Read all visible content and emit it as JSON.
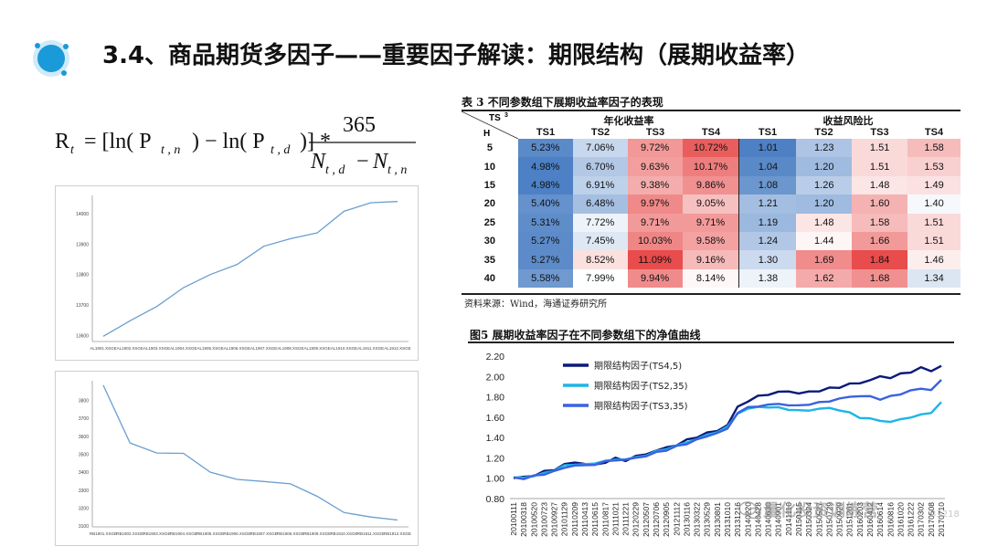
{
  "title": "3.4、商品期货多因子——重要因子解读：期限结构（展期收益率）",
  "formula": {
    "lhs": "R",
    "lhs_sub": "t",
    "body": "= [ln( P",
    "p1_sub": "t , n",
    "mid": ") − ln( P",
    "p2_sub": "t , d",
    "tail": ")] *",
    "numerator": "365",
    "den_n1": "N",
    "den_n1_sub": "t , d",
    "den_minus": "−",
    "den_n2": "N",
    "den_n2_sub": "t , n"
  },
  "chart_data": [
    {
      "type": "line",
      "series": [
        {
          "values": [
            13597,
            13648,
            13695,
            13757,
            13800,
            13833,
            13893,
            13918,
            13937,
            14008,
            14036,
            14040
          ]
        }
      ],
      "categories": [
        "AL1901.XSGE",
        "AL1902.XSGE",
        "AL1903.XSGE",
        "AL1904.XSGE",
        "AL1905.XSGE",
        "AL1906.XSGE",
        "AL1907.XSGE",
        "AL1908.XSGE",
        "AL1909.XSGE",
        "AL1910.XSGE",
        "AL1911.XSGE",
        "AL1912.XSGE"
      ],
      "yticks": [
        "13600",
        "13700",
        "13800",
        "13900",
        "14000"
      ],
      "ylim": [
        13580,
        14060
      ],
      "color": "#6a9ed0"
    },
    {
      "type": "line",
      "series": [
        {
          "values": [
            3885,
            3563,
            3507,
            3505,
            3400,
            3360,
            3348,
            3335,
            3265,
            3175,
            3150,
            3133
          ]
        }
      ],
      "categories": [
        "RB1901.XSGE",
        "RB1902.XSGE",
        "RB1903.XSGE",
        "RB1904.XSGE",
        "RB1905.XSGE",
        "RB1906.XSGE",
        "RB1907.XSGE",
        "RB1908.XSGE",
        "RB1909.XSGE",
        "RB1910.XSGE",
        "RB1911.XSGE",
        "RB1912.XSGE"
      ],
      "yticks": [
        "3100",
        "3200",
        "3300",
        "3400",
        "3500",
        "3600",
        "3700",
        "3800"
      ],
      "ylim": [
        3095,
        3910
      ],
      "color": "#6a9ed0"
    },
    {
      "type": "table",
      "title": "表 3  不同参数组下展期收益率因子的表现",
      "corner_top": "TS",
      "corner_sup": "3",
      "corner_bottom": "H",
      "group_headers": [
        "年化收益率",
        "收益风险比"
      ],
      "columns": [
        "TS1",
        "TS2",
        "TS3",
        "TS4",
        "TS1",
        "TS2",
        "TS3",
        "TS4"
      ],
      "rows": [
        {
          "h": "5",
          "ret": [
            "5.23%",
            "7.06%",
            "9.72%",
            "10.72%"
          ],
          "rr": [
            "1.01",
            "1.23",
            "1.51",
            "1.58"
          ]
        },
        {
          "h": "10",
          "ret": [
            "4.98%",
            "6.70%",
            "9.63%",
            "10.17%"
          ],
          "rr": [
            "1.04",
            "1.20",
            "1.51",
            "1.53"
          ]
        },
        {
          "h": "15",
          "ret": [
            "4.98%",
            "6.91%",
            "9.38%",
            "9.86%"
          ],
          "rr": [
            "1.08",
            "1.26",
            "1.48",
            "1.49"
          ]
        },
        {
          "h": "20",
          "ret": [
            "5.40%",
            "6.48%",
            "9.97%",
            "9.05%"
          ],
          "rr": [
            "1.21",
            "1.20",
            "1.60",
            "1.40"
          ]
        },
        {
          "h": "25",
          "ret": [
            "5.31%",
            "7.72%",
            "9.71%",
            "9.71%"
          ],
          "rr": [
            "1.19",
            "1.48",
            "1.58",
            "1.51"
          ]
        },
        {
          "h": "30",
          "ret": [
            "5.27%",
            "7.45%",
            "10.03%",
            "9.58%"
          ],
          "rr": [
            "1.24",
            "1.44",
            "1.66",
            "1.51"
          ]
        },
        {
          "h": "35",
          "ret": [
            "5.27%",
            "8.52%",
            "11.09%",
            "9.16%"
          ],
          "rr": [
            "1.30",
            "1.69",
            "1.84",
            "1.46"
          ]
        },
        {
          "h": "40",
          "ret": [
            "5.58%",
            "7.99%",
            "9.94%",
            "8.14%"
          ],
          "rr": [
            "1.38",
            "1.62",
            "1.68",
            "1.34"
          ]
        }
      ],
      "source": "资料来源：Wind，海通证券研究所"
    },
    {
      "type": "line",
      "title": "图5  展期收益率因子在不同参数组下的净值曲线",
      "ylim": [
        0.8,
        2.2
      ],
      "yticks": [
        "0.80",
        "1.00",
        "1.20",
        "1.40",
        "1.60",
        "1.80",
        "2.00",
        "2.20"
      ],
      "x": [
        "20100111",
        "20100318",
        "20100520",
        "20100723",
        "20100927",
        "20101129",
        "20110209",
        "20110413",
        "20110615",
        "20110817",
        "20111021",
        "20111221",
        "20120229",
        "20120507",
        "20120706",
        "20120905",
        "20121112",
        "20130116",
        "20130322",
        "20130529",
        "20130801",
        "20131010",
        "20131216",
        "20140220",
        "20140428",
        "20140630",
        "20140901",
        "20141110",
        "20150115",
        "20150324",
        "20150527",
        "20150729",
        "20150929",
        "20151201",
        "20160203",
        "20160412",
        "20160614",
        "20160816",
        "20161020",
        "20161222",
        "20170302",
        "20170508",
        "20170710"
      ],
      "series": [
        {
          "name": "期限结构因子(TS4,5)",
          "color": "#0a1a7a",
          "values": [
            1.0,
            1.01,
            1.03,
            1.06,
            1.09,
            1.13,
            1.16,
            1.14,
            1.13,
            1.16,
            1.19,
            1.18,
            1.21,
            1.24,
            1.27,
            1.3,
            1.33,
            1.37,
            1.41,
            1.44,
            1.47,
            1.52,
            1.7,
            1.76,
            1.8,
            1.83,
            1.84,
            1.86,
            1.83,
            1.85,
            1.86,
            1.88,
            1.9,
            1.92,
            1.94,
            1.96,
            2.0,
            1.99,
            2.02,
            2.05,
            2.08,
            2.06,
            2.1
          ]
        },
        {
          "name": "期限结构因子(TS2,35)",
          "color": "#1eb4e6",
          "values": [
            1.0,
            1.01,
            1.02,
            1.05,
            1.08,
            1.12,
            1.14,
            1.13,
            1.15,
            1.17,
            1.18,
            1.19,
            1.2,
            1.23,
            1.26,
            1.29,
            1.32,
            1.35,
            1.39,
            1.42,
            1.46,
            1.5,
            1.64,
            1.68,
            1.7,
            1.7,
            1.69,
            1.68,
            1.66,
            1.67,
            1.68,
            1.69,
            1.67,
            1.64,
            1.6,
            1.58,
            1.57,
            1.55,
            1.58,
            1.6,
            1.62,
            1.65,
            1.74
          ]
        },
        {
          "name": "期限结构因子(TS3,35)",
          "color": "#3a62e0",
          "values": [
            1.0,
            1.0,
            1.02,
            1.04,
            1.07,
            1.1,
            1.13,
            1.12,
            1.14,
            1.16,
            1.18,
            1.18,
            1.2,
            1.22,
            1.25,
            1.28,
            1.31,
            1.34,
            1.38,
            1.41,
            1.45,
            1.48,
            1.65,
            1.69,
            1.71,
            1.72,
            1.73,
            1.72,
            1.71,
            1.73,
            1.74,
            1.76,
            1.78,
            1.8,
            1.81,
            1.8,
            1.78,
            1.8,
            1.83,
            1.86,
            1.88,
            1.87,
            1.96
          ]
        }
      ]
    }
  ],
  "watermark": {
    "brand": "量化投资训练营",
    "id": "33218"
  },
  "colors": {
    "logo_outer": "#7fc7ef",
    "logo_inner": "#1a9ad8",
    "heat_blue": "#4d80c4",
    "heat_red": "#e84c4c"
  }
}
